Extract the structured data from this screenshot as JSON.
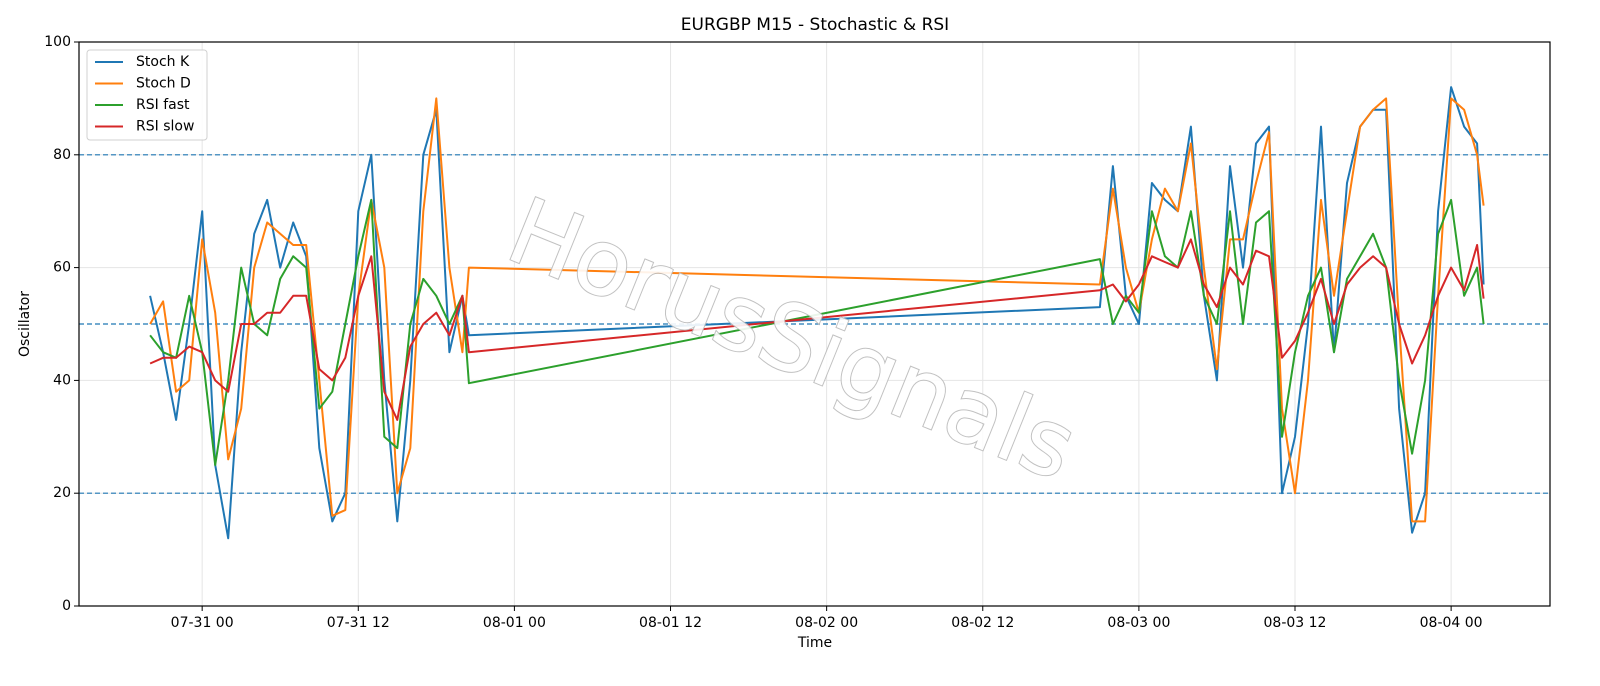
{
  "chart_data": {
    "type": "line",
    "title": "EURGBP M15 - Stochastic & RSI",
    "x_label": "Time",
    "y_label": "Oscillator",
    "watermark": "HorusSignals",
    "legend": "upper left",
    "grid": true,
    "hlines": [
      80,
      50,
      20
    ],
    "hline_color": "#1f77b4",
    "xlim": [
      "07-30 14:32",
      "08-04 07:36"
    ],
    "xticks": [
      "07-31 00",
      "07-31 12",
      "08-01 00",
      "08-01 12",
      "08-02 00",
      "08-02 12",
      "08-03 00",
      "08-03 12",
      "08-04 00"
    ],
    "ylim": [
      0,
      100
    ],
    "yticks": [
      0,
      20,
      40,
      60,
      80,
      100
    ],
    "x": [
      "07-30 20:00",
      "07-30 21:00",
      "07-30 22:00",
      "07-30 23:00",
      "07-31 00:00",
      "07-31 01:00",
      "07-31 02:00",
      "07-31 03:00",
      "07-31 04:00",
      "07-31 05:00",
      "07-31 06:00",
      "07-31 07:00",
      "07-31 08:00",
      "07-31 09:00",
      "07-31 10:00",
      "07-31 11:00",
      "07-31 12:00",
      "07-31 13:00",
      "07-31 14:00",
      "07-31 15:00",
      "07-31 16:00",
      "07-31 17:00",
      "07-31 18:00",
      "07-31 19:00",
      "07-31 20:00",
      "07-31 20:30",
      "08-02 21:00",
      "08-02 22:00",
      "08-02 23:00",
      "08-03 00:00",
      "08-03 01:00",
      "08-03 02:00",
      "08-03 03:00",
      "08-03 04:00",
      "08-03 05:00",
      "08-03 06:00",
      "08-03 07:00",
      "08-03 08:00",
      "08-03 09:00",
      "08-03 10:00",
      "08-03 11:00",
      "08-03 12:00",
      "08-03 13:00",
      "08-03 14:00",
      "08-03 15:00",
      "08-03 16:00",
      "08-03 17:00",
      "08-03 18:00",
      "08-03 19:00",
      "08-03 20:00",
      "08-03 21:00",
      "08-03 22:00",
      "08-03 23:00",
      "08-04 00:00",
      "08-04 01:00",
      "08-04 02:00",
      "08-04 02:30"
    ],
    "series": [
      {
        "name": "Stoch K",
        "color": "#1f77b4",
        "values": [
          55,
          45,
          33,
          50,
          70,
          25,
          12,
          45,
          66,
          72,
          60,
          68,
          62,
          28,
          15,
          20,
          70,
          80,
          40,
          15,
          40,
          80,
          88,
          45,
          55,
          48,
          53,
          78,
          55,
          50,
          75,
          72,
          70,
          85,
          55,
          40,
          78,
          60,
          82,
          85,
          20,
          30,
          50,
          85,
          45,
          75,
          85,
          88,
          88,
          35,
          13,
          20,
          70,
          92,
          85,
          82,
          57
        ]
      },
      {
        "name": "Stoch D",
        "color": "#ff7f0e",
        "values": [
          50,
          54,
          38,
          40,
          65,
          52,
          26,
          35,
          60,
          68,
          66,
          64,
          64,
          40,
          16,
          17,
          55,
          72,
          60,
          20,
          28,
          70,
          90,
          60,
          45,
          60,
          57,
          74,
          60,
          52,
          65,
          74,
          70,
          82,
          60,
          42,
          65,
          65,
          75,
          84,
          35,
          20,
          40,
          72,
          55,
          70,
          85,
          88,
          90,
          50,
          15,
          15,
          55,
          90,
          88,
          80,
          71
        ]
      },
      {
        "name": "RSI fast",
        "color": "#2ca02c",
        "values": [
          48,
          45,
          44,
          55,
          45,
          25,
          40,
          60,
          50,
          48,
          58,
          62,
          60,
          35,
          38,
          50,
          62,
          72,
          30,
          28,
          50,
          58,
          55,
          50,
          55,
          39.5,
          61.5,
          50,
          55,
          52,
          70,
          62,
          60,
          70,
          55,
          50,
          70,
          50,
          68,
          70,
          30,
          45,
          55,
          60,
          45,
          58,
          62,
          66,
          60,
          40,
          27,
          40,
          66,
          72,
          55,
          60,
          50
        ]
      },
      {
        "name": "RSI slow",
        "color": "#d62728",
        "values": [
          43,
          44,
          44,
          46,
          45,
          40,
          38,
          50,
          50,
          52,
          52,
          55,
          55,
          42,
          40,
          44,
          55,
          62,
          38,
          33,
          46,
          50,
          52,
          48,
          55,
          45,
          56,
          57,
          54,
          57,
          62,
          61,
          60,
          65,
          57,
          53,
          60,
          57,
          63,
          62,
          44,
          47,
          52,
          58,
          50,
          57,
          60,
          62,
          60,
          50,
          43,
          48,
          55,
          60,
          56,
          64,
          54.5
        ]
      }
    ]
  }
}
